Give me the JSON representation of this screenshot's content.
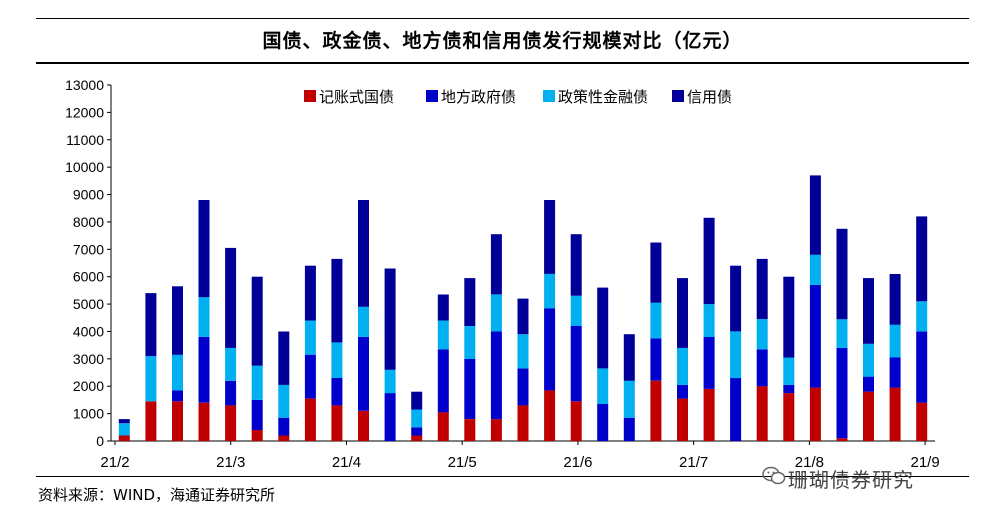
{
  "title": "国债、政金债、地方债和信用债发行规模对比（亿元）",
  "source": "资料来源：WIND，海通证券研究所",
  "watermark": "珊瑚债券研究",
  "colors": {
    "treasury": "#C00000",
    "local_gov": "#0000CC",
    "policy_bank": "#00B0F0",
    "credit": "#000099"
  },
  "chart_data": {
    "type": "bar",
    "stacked": true,
    "ylim": [
      0,
      13000
    ],
    "yticks": [
      0,
      1000,
      2000,
      3000,
      4000,
      5000,
      6000,
      7000,
      8000,
      9000,
      10000,
      11000,
      12000,
      13000
    ],
    "x_tick_labels": [
      "21/2",
      "21/3",
      "21/4",
      "21/5",
      "21/6",
      "21/7",
      "21/8",
      "21/9"
    ],
    "legend_position": "top-center",
    "series": [
      {
        "name": "记账式国债",
        "key": "treasury",
        "values": [
          200,
          1450,
          1450,
          1400,
          1300,
          400,
          200,
          1550,
          1300,
          1100,
          0,
          200,
          1050,
          800,
          800,
          1300,
          1850,
          1450,
          0,
          0,
          2200,
          1550,
          1900,
          0,
          2000,
          1750,
          1950,
          100,
          1800,
          1950,
          1400
        ]
      },
      {
        "name": "地方政府债",
        "key": "local_gov",
        "values": [
          0,
          0,
          400,
          2400,
          900,
          1100,
          650,
          1600,
          1000,
          2700,
          1750,
          300,
          2300,
          2200,
          3200,
          1350,
          3000,
          2750,
          1350,
          850,
          1550,
          500,
          1900,
          2300,
          1350,
          300,
          3750,
          3300,
          550,
          1100,
          2600
        ]
      },
      {
        "name": "政策性金融债",
        "key": "policy_bank",
        "values": [
          450,
          1650,
          1300,
          1450,
          1200,
          1250,
          1200,
          1250,
          1300,
          1100,
          850,
          650,
          1050,
          1200,
          1350,
          1250,
          1250,
          1100,
          1300,
          1350,
          1300,
          1350,
          1200,
          1700,
          1100,
          1000,
          1100,
          1050,
          1200,
          1200,
          1100
        ]
      },
      {
        "name": "信用债",
        "key": "credit",
        "values": [
          150,
          2300,
          2500,
          3550,
          3650,
          3250,
          1950,
          2000,
          3050,
          3900,
          3700,
          650,
          950,
          1750,
          2200,
          1300,
          2700,
          2250,
          2950,
          1700,
          2200,
          2550,
          3150,
          2400,
          2200,
          2950,
          2900,
          3300,
          2400,
          1850,
          3100
        ]
      }
    ]
  }
}
